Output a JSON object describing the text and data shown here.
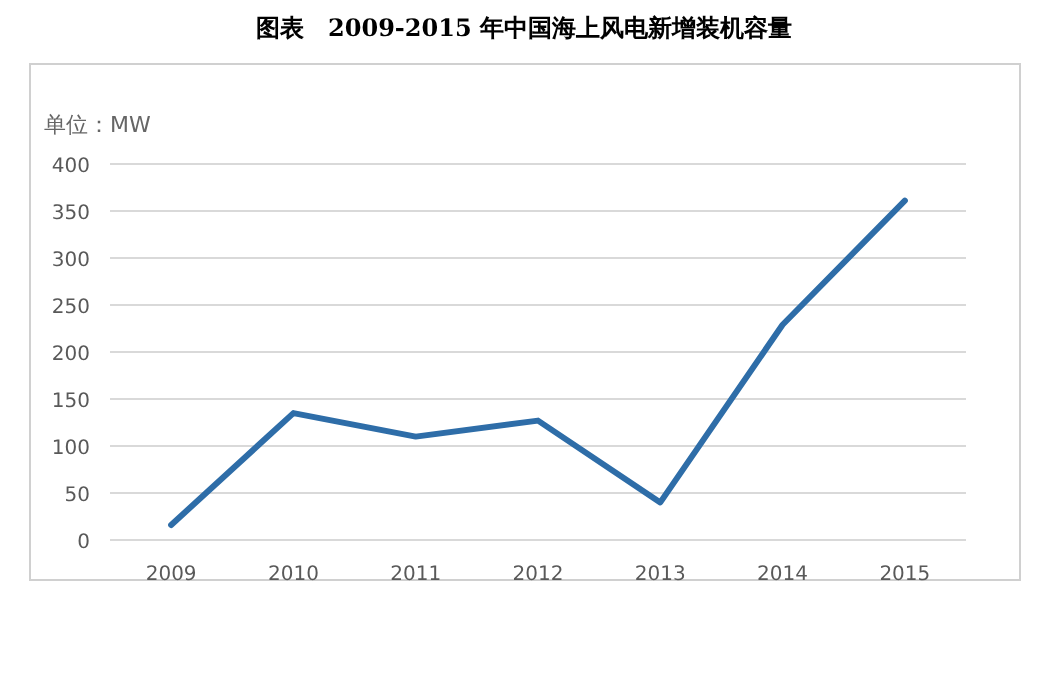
{
  "chart_data": {
    "type": "line",
    "title": "图表　2009-2015 年中国海上风电新增装机容量",
    "ylabel": "单位：MW",
    "categories": [
      "2009",
      "2010",
      "2011",
      "2012",
      "2013",
      "2014",
      "2015"
    ],
    "series": [
      {
        "color": "#2e6da8",
        "values": [
          16,
          135,
          110,
          127,
          40,
          229,
          361
        ]
      }
    ],
    "ylim": [
      0,
      400
    ],
    "yticks": [
      0,
      50,
      100,
      150,
      200,
      250,
      300,
      350,
      400
    ],
    "grid": "y",
    "marker": "none",
    "line_style": "solid"
  }
}
